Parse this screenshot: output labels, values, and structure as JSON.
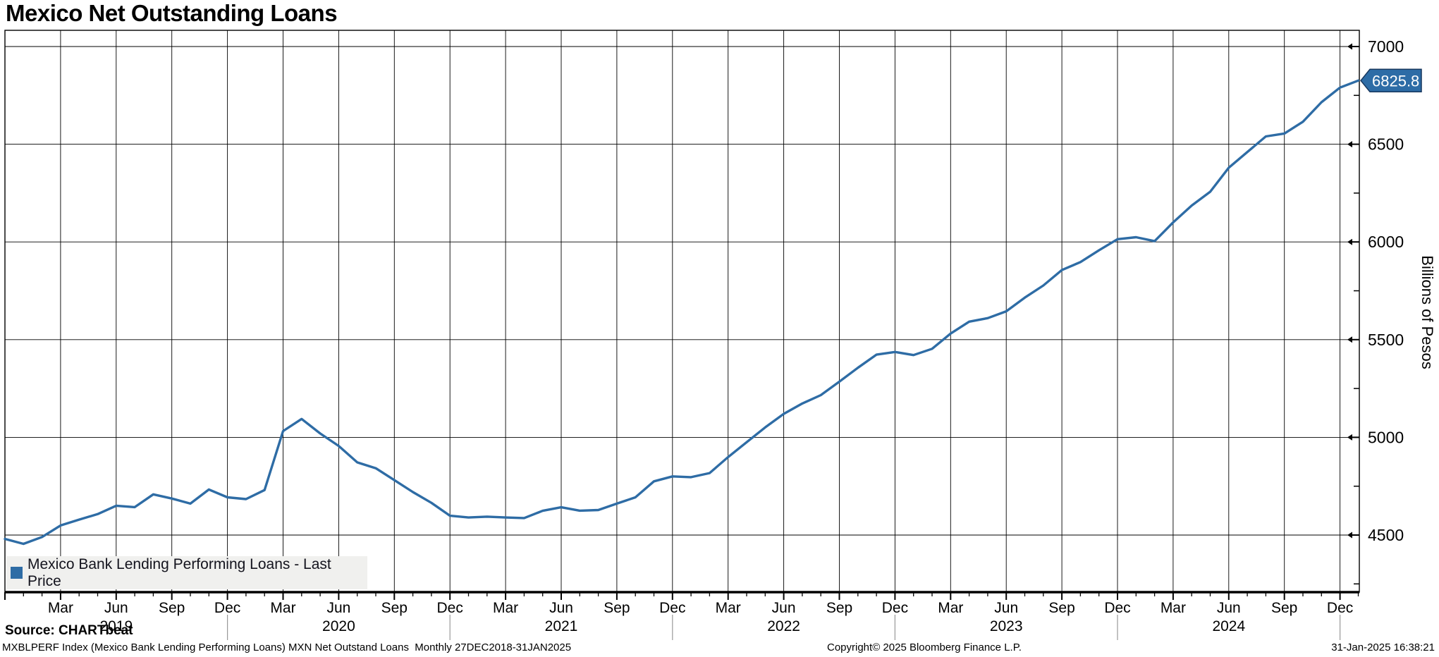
{
  "title": "Mexico Net Outstanding Loans",
  "legend": {
    "series_label": "Mexico Bank Lending Performing Loans - Last Price",
    "marker_color": "#2e6ca5"
  },
  "source_line": "Source: CHARTbeat",
  "footer": {
    "left": "MXBLPERF Index (Mexico Bank Lending Performing Loans) MXN Net Outstand Loans  Monthly 27DEC2018-31JAN2025",
    "center": "Copyright© 2025 Bloomberg Finance L.P.",
    "right": "31-Jan-2025 16:38:21"
  },
  "colors": {
    "line": "#2e6ca5",
    "grid": "#000000",
    "tag_fill": "#2d6ca6",
    "tag_border": "#17375e",
    "tag_text": "#ffffff",
    "year_divider": "#999999",
    "legend_bg": "#f0f0ee"
  },
  "y_axis": {
    "title": "Billions of Pesos",
    "ticks": [
      7000,
      6500,
      6000,
      5500,
      5000,
      4500
    ],
    "minor_ticks": [
      6750,
      6250,
      5750,
      5250,
      4750,
      4250
    ]
  },
  "x_axis": {
    "tick_months": [
      "Mar",
      "Jun",
      "Sep",
      "Dec"
    ],
    "years": [
      "2019",
      "2020",
      "2021",
      "2022",
      "2023",
      "2024"
    ]
  },
  "last_price_label": "6825.8",
  "chart_data": {
    "type": "line",
    "frequency": "monthly",
    "x_start": "2018-12",
    "x_end": "2025-01",
    "ylim": [
      4210,
      7080
    ],
    "grid": true,
    "legend_position": "bottom-left",
    "series": [
      {
        "name": "Mexico Bank Lending Performing Loans - Last Price",
        "color": "#2e6ca5",
        "last_price": 6825.8,
        "values": [
          4480,
          4455,
          4490,
          4549,
          4579,
          4607,
          4650,
          4643,
          4708,
          4687,
          4661,
          4733,
          4693,
          4684,
          4730,
          5032,
          5094,
          5020,
          4956,
          4872,
          4842,
          4781,
          4720,
          4665,
          4599,
          4590,
          4594,
          4590,
          4587,
          4624,
          4642,
          4625,
          4628,
          4661,
          4693,
          4775,
          4800,
          4796,
          4817,
          4899,
          4975,
          5051,
          5120,
          5173,
          5216,
          5285,
          5356,
          5423,
          5437,
          5421,
          5453,
          5531,
          5592,
          5610,
          5645,
          5715,
          5777,
          5856,
          5897,
          5957,
          6014,
          6024,
          6004,
          6100,
          6186,
          6257,
          6380,
          6460,
          6540,
          6555,
          6615,
          6715,
          6790,
          6825.8
        ]
      }
    ]
  }
}
